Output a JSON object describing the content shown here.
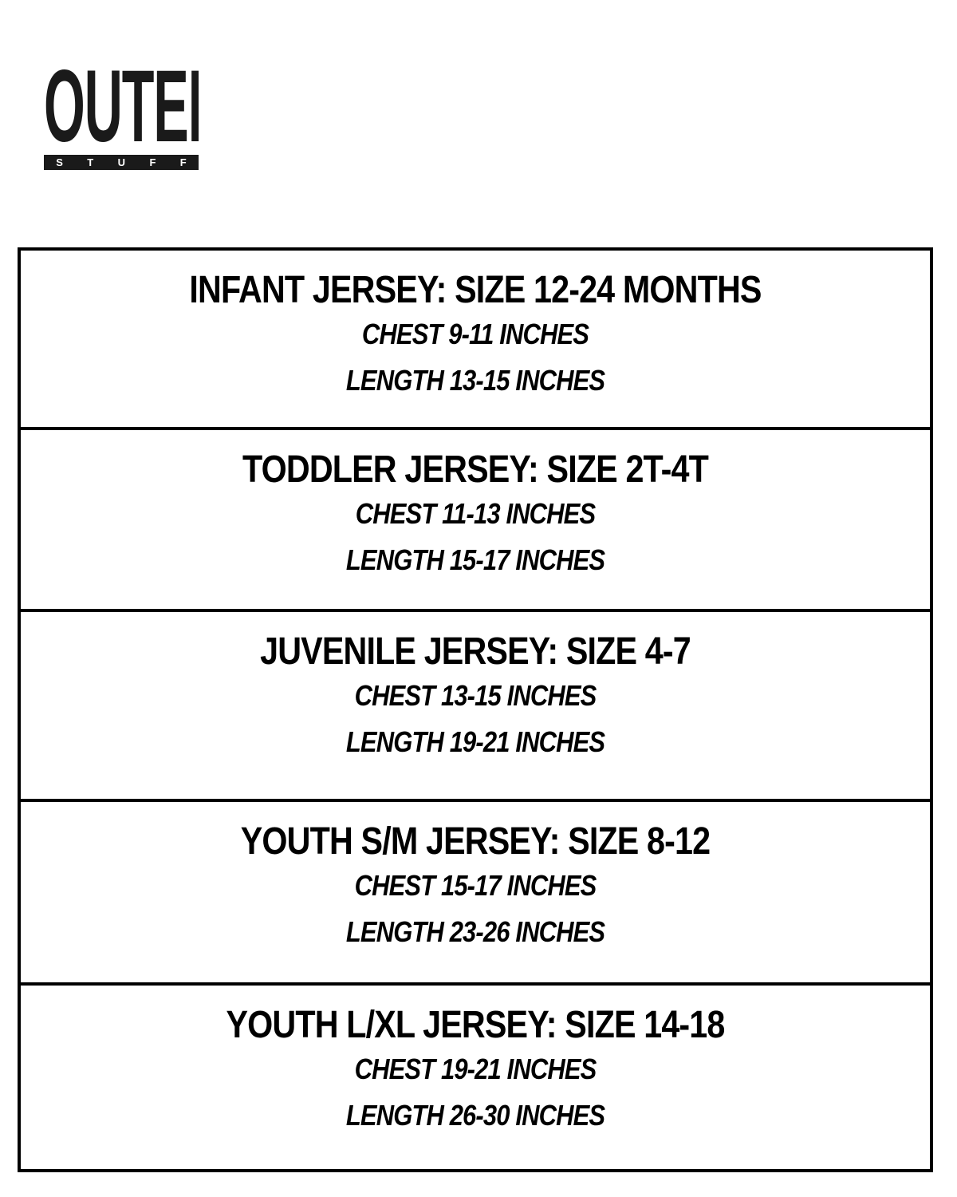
{
  "logo": {
    "main": "OUTER",
    "sub": [
      "S",
      "T",
      "U",
      "F",
      "F"
    ]
  },
  "rows": [
    {
      "title": "INFANT JERSEY: SIZE 12-24 MONTHS",
      "chest": "CHEST 9-11 INCHES",
      "length": "LENGTH 13-15 INCHES"
    },
    {
      "title": "TODDLER JERSEY: SIZE 2T-4T",
      "chest": "CHEST 11-13 INCHES",
      "length": "LENGTH 15-17 INCHES"
    },
    {
      "title": "JUVENILE JERSEY: SIZE 4-7",
      "chest": "CHEST 13-15 INCHES",
      "length": "LENGTH 19-21 INCHES"
    },
    {
      "title": "YOUTH S/M JERSEY: SIZE 8-12",
      "chest": "CHEST 15-17 INCHES",
      "length": "LENGTH 23-26 INCHES"
    },
    {
      "title": "YOUTH L/XL JERSEY: SIZE 14-18",
      "chest": "CHEST 19-21 INCHES",
      "length": "LENGTH 26-30 INCHES"
    }
  ]
}
